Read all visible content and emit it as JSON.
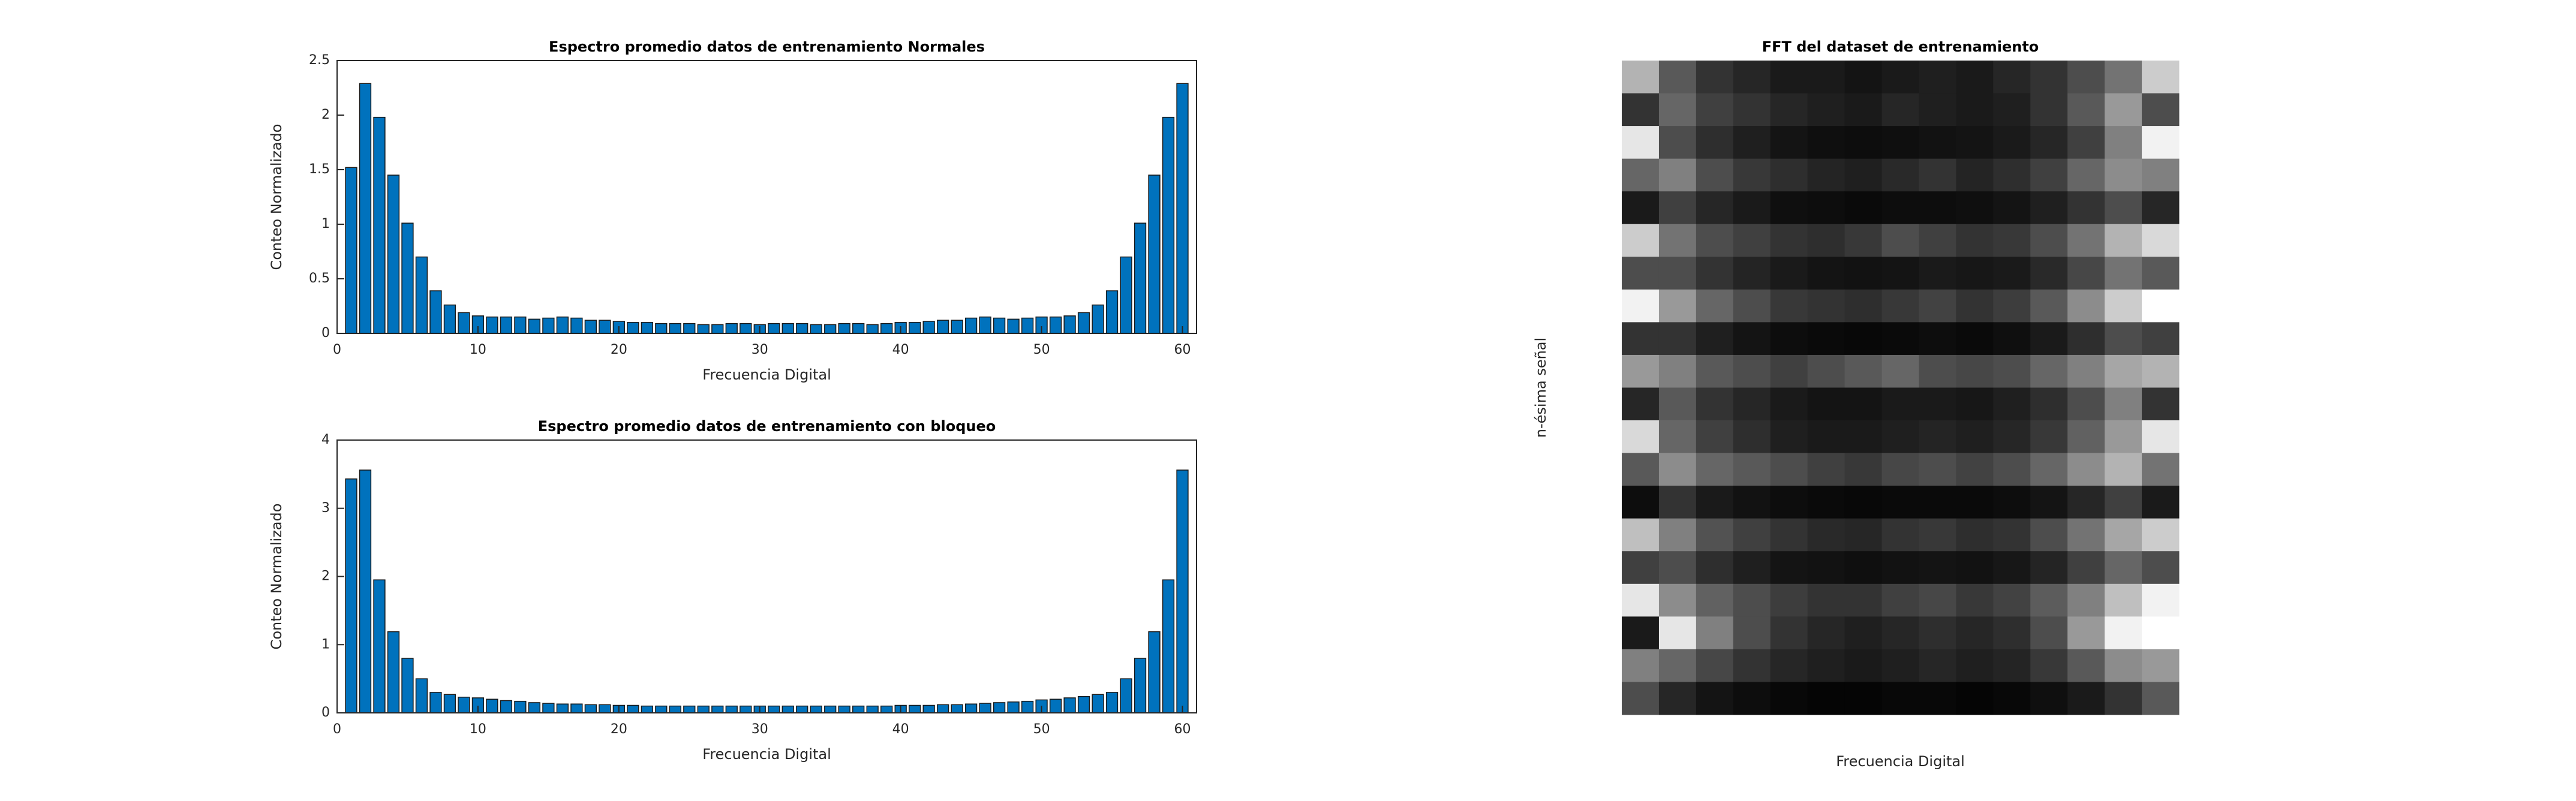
{
  "chart_data": [
    {
      "type": "bar",
      "title": "Espectro promedio datos de entrenamiento Normales",
      "xlabel": "Frecuencia Digital",
      "ylabel": "Conteo Normalizado",
      "color": "#0072bd",
      "x": [
        1,
        2,
        3,
        4,
        5,
        6,
        7,
        8,
        9,
        10,
        11,
        12,
        13,
        14,
        15,
        16,
        17,
        18,
        19,
        20,
        21,
        22,
        23,
        24,
        25,
        26,
        27,
        28,
        29,
        30,
        31,
        32,
        33,
        34,
        35,
        36,
        37,
        38,
        39,
        40,
        41,
        42,
        43,
        44,
        45,
        46,
        47,
        48,
        49,
        50,
        51,
        52,
        53,
        54,
        55,
        56,
        57,
        58,
        59,
        60
      ],
      "values": [
        1.52,
        2.29,
        1.98,
        1.45,
        1.01,
        0.7,
        0.39,
        0.26,
        0.19,
        0.16,
        0.15,
        0.15,
        0.15,
        0.13,
        0.14,
        0.15,
        0.14,
        0.12,
        0.12,
        0.11,
        0.1,
        0.1,
        0.09,
        0.09,
        0.09,
        0.08,
        0.08,
        0.09,
        0.09,
        0.08,
        0.09,
        0.09,
        0.09,
        0.08,
        0.08,
        0.09,
        0.09,
        0.08,
        0.09,
        0.1,
        0.1,
        0.11,
        0.12,
        0.12,
        0.14,
        0.15,
        0.14,
        0.13,
        0.14,
        0.15,
        0.15,
        0.16,
        0.19,
        0.26,
        0.39,
        0.7,
        1.01,
        1.45,
        1.98,
        2.29
      ],
      "xlim": [
        0,
        61
      ],
      "xticks": [
        0,
        10,
        20,
        30,
        40,
        50,
        60
      ],
      "ylim": [
        0,
        2.5
      ],
      "yticks": [
        0,
        0.5,
        1,
        1.5,
        2,
        2.5
      ]
    },
    {
      "type": "bar",
      "title": "Espectro promedio datos de entrenamiento con bloqueo",
      "xlabel": "Frecuencia Digital",
      "ylabel": "Conteo Normalizado",
      "color": "#0072bd",
      "x": [
        1,
        2,
        3,
        4,
        5,
        6,
        7,
        8,
        9,
        10,
        11,
        12,
        13,
        14,
        15,
        16,
        17,
        18,
        19,
        20,
        21,
        22,
        23,
        24,
        25,
        26,
        27,
        28,
        29,
        30,
        31,
        32,
        33,
        34,
        35,
        36,
        37,
        38,
        39,
        40,
        41,
        42,
        43,
        44,
        45,
        46,
        47,
        48,
        49,
        50,
        51,
        52,
        53,
        54,
        55,
        56,
        57,
        58,
        59,
        60
      ],
      "values": [
        3.43,
        3.56,
        1.95,
        1.19,
        0.8,
        0.5,
        0.3,
        0.27,
        0.23,
        0.22,
        0.2,
        0.18,
        0.17,
        0.15,
        0.14,
        0.13,
        0.13,
        0.12,
        0.12,
        0.11,
        0.11,
        0.1,
        0.1,
        0.1,
        0.1,
        0.1,
        0.1,
        0.1,
        0.1,
        0.1,
        0.1,
        0.1,
        0.1,
        0.1,
        0.1,
        0.1,
        0.1,
        0.1,
        0.1,
        0.11,
        0.11,
        0.11,
        0.12,
        0.12,
        0.13,
        0.14,
        0.15,
        0.16,
        0.17,
        0.19,
        0.2,
        0.22,
        0.24,
        0.27,
        0.3,
        0.5,
        0.8,
        1.19,
        1.95,
        3.56
      ],
      "xlim": [
        0,
        61
      ],
      "xticks": [
        0,
        10,
        20,
        30,
        40,
        50,
        60
      ],
      "ylim": [
        0,
        4
      ],
      "yticks": [
        0,
        1,
        2,
        3,
        4
      ]
    },
    {
      "type": "heatmap",
      "title": "FFT del dataset de entrenamiento",
      "xlabel": "Frecuencia Digital",
      "ylabel": "n-ésima señal",
      "values": [
        [
          0.7,
          0.35,
          0.2,
          0.15,
          0.1,
          0.1,
          0.08,
          0.1,
          0.12,
          0.1,
          0.15,
          0.2,
          0.3,
          0.45,
          0.8
        ],
        [
          0.2,
          0.4,
          0.25,
          0.2,
          0.15,
          0.12,
          0.1,
          0.15,
          0.12,
          0.1,
          0.12,
          0.2,
          0.35,
          0.6,
          0.3
        ],
        [
          0.9,
          0.3,
          0.18,
          0.12,
          0.08,
          0.06,
          0.05,
          0.06,
          0.07,
          0.08,
          0.1,
          0.15,
          0.25,
          0.5,
          0.95
        ],
        [
          0.4,
          0.5,
          0.3,
          0.22,
          0.18,
          0.14,
          0.12,
          0.16,
          0.2,
          0.14,
          0.18,
          0.25,
          0.4,
          0.55,
          0.5
        ],
        [
          0.1,
          0.25,
          0.15,
          0.1,
          0.06,
          0.05,
          0.04,
          0.05,
          0.05,
          0.06,
          0.08,
          0.12,
          0.2,
          0.3,
          0.15
        ],
        [
          0.8,
          0.45,
          0.3,
          0.25,
          0.2,
          0.18,
          0.22,
          0.3,
          0.25,
          0.2,
          0.22,
          0.3,
          0.45,
          0.7,
          0.85
        ],
        [
          0.3,
          0.3,
          0.2,
          0.14,
          0.1,
          0.08,
          0.07,
          0.08,
          0.1,
          0.09,
          0.1,
          0.16,
          0.28,
          0.45,
          0.35
        ],
        [
          0.95,
          0.6,
          0.4,
          0.3,
          0.22,
          0.2,
          0.18,
          0.22,
          0.26,
          0.2,
          0.24,
          0.35,
          0.55,
          0.8,
          1.0
        ],
        [
          0.2,
          0.2,
          0.12,
          0.08,
          0.05,
          0.04,
          0.03,
          0.04,
          0.05,
          0.04,
          0.06,
          0.1,
          0.18,
          0.3,
          0.25
        ],
        [
          0.6,
          0.5,
          0.35,
          0.3,
          0.25,
          0.3,
          0.35,
          0.4,
          0.3,
          0.28,
          0.3,
          0.4,
          0.5,
          0.65,
          0.7
        ],
        [
          0.15,
          0.35,
          0.2,
          0.15,
          0.1,
          0.08,
          0.08,
          0.1,
          0.1,
          0.09,
          0.12,
          0.18,
          0.3,
          0.5,
          0.2
        ],
        [
          0.85,
          0.4,
          0.25,
          0.18,
          0.12,
          0.1,
          0.1,
          0.12,
          0.14,
          0.12,
          0.15,
          0.22,
          0.38,
          0.6,
          0.9
        ],
        [
          0.35,
          0.55,
          0.4,
          0.35,
          0.3,
          0.25,
          0.22,
          0.28,
          0.3,
          0.26,
          0.3,
          0.4,
          0.55,
          0.7,
          0.45
        ],
        [
          0.05,
          0.2,
          0.1,
          0.07,
          0.05,
          0.04,
          0.03,
          0.04,
          0.04,
          0.04,
          0.05,
          0.08,
          0.15,
          0.25,
          0.1
        ],
        [
          0.75,
          0.5,
          0.32,
          0.25,
          0.2,
          0.16,
          0.15,
          0.2,
          0.22,
          0.18,
          0.2,
          0.3,
          0.45,
          0.65,
          0.8
        ],
        [
          0.25,
          0.3,
          0.18,
          0.12,
          0.08,
          0.07,
          0.06,
          0.07,
          0.08,
          0.07,
          0.09,
          0.14,
          0.25,
          0.4,
          0.3
        ],
        [
          0.9,
          0.55,
          0.38,
          0.3,
          0.24,
          0.2,
          0.2,
          0.25,
          0.28,
          0.22,
          0.26,
          0.36,
          0.5,
          0.75,
          0.95
        ],
        [
          0.1,
          0.9,
          0.5,
          0.3,
          0.2,
          0.15,
          0.12,
          0.15,
          0.18,
          0.15,
          0.18,
          0.3,
          0.6,
          0.95,
          1.0
        ],
        [
          0.5,
          0.4,
          0.28,
          0.2,
          0.15,
          0.12,
          0.1,
          0.12,
          0.15,
          0.12,
          0.14,
          0.22,
          0.35,
          0.55,
          0.6
        ],
        [
          0.3,
          0.15,
          0.08,
          0.05,
          0.03,
          0.02,
          0.02,
          0.03,
          0.03,
          0.02,
          0.03,
          0.06,
          0.1,
          0.2,
          0.35
        ]
      ]
    }
  ]
}
